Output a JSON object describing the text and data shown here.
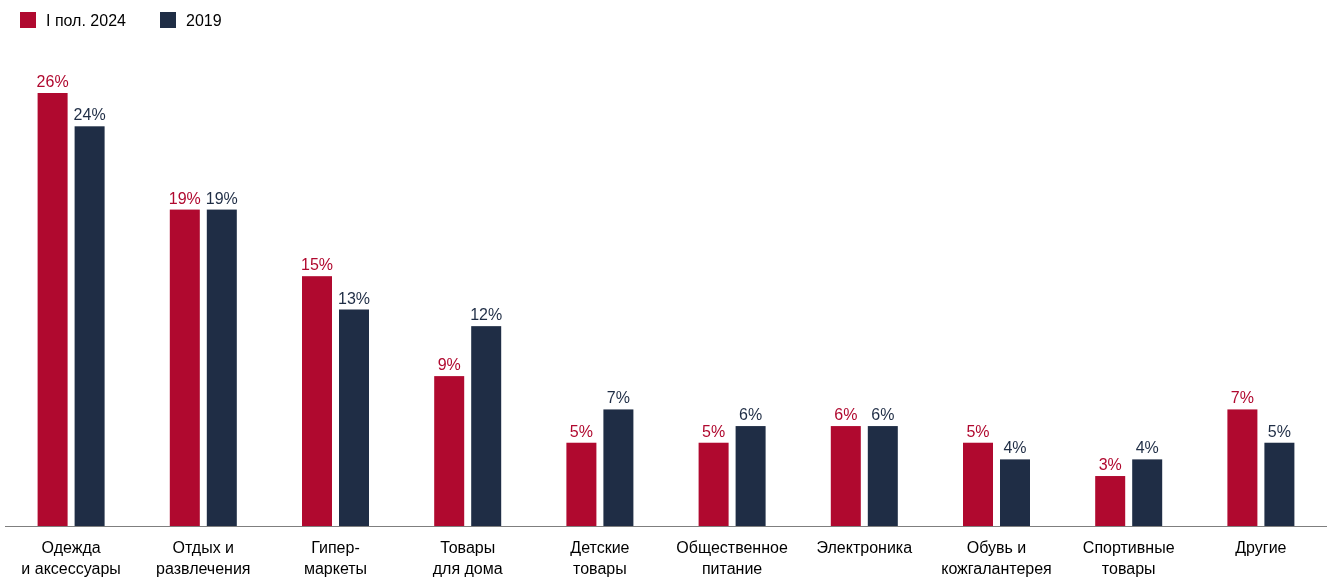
{
  "chart_data": {
    "type": "bar",
    "categories": [
      "Одежда\nи аксессуары",
      "Отдых и\nразвлечения",
      "Гипер-\nмаркеты",
      "Товары\nдля дома",
      "Детские\nтовары",
      "Общественное\nпитание",
      "Электроника",
      "Обувь и\nкожгалантерея",
      "Спортивные\nтовары",
      "Другие"
    ],
    "series": [
      {
        "name": "I пол. 2024",
        "color": "#b0092f",
        "values": [
          26,
          19,
          15,
          9,
          5,
          5,
          6,
          5,
          3,
          7
        ],
        "value_labels": [
          "26%",
          "19%",
          "15%",
          "9%",
          "5%",
          "5%",
          "6%",
          "5%",
          "3%",
          "7%"
        ]
      },
      {
        "name": "2019",
        "color": "#1f2d45",
        "values": [
          24,
          19,
          13,
          12,
          7,
          6,
          6,
          4,
          4,
          5
        ],
        "value_labels": [
          "24%",
          "19%",
          "13%",
          "12%",
          "7%",
          "6%",
          "6%",
          "4%",
          "4%",
          "5%"
        ]
      }
    ],
    "legend": "top left"
  }
}
